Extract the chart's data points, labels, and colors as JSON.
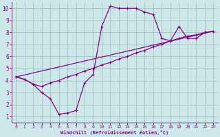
{
  "xlabel": "Windchill (Refroidissement éolien,°C)",
  "bg_color": "#cce8e8",
  "line_color": "#880088",
  "grid_color": "#99bbbb",
  "xlim": [
    -0.5,
    23.5
  ],
  "ylim": [
    0.5,
    10.5
  ],
  "xticks": [
    0,
    1,
    2,
    3,
    4,
    5,
    6,
    7,
    8,
    9,
    10,
    11,
    12,
    13,
    14,
    15,
    16,
    17,
    18,
    19,
    20,
    21,
    22,
    23
  ],
  "yticks": [
    1,
    2,
    3,
    4,
    5,
    6,
    7,
    8,
    9,
    10
  ],
  "series1_x": [
    0,
    1,
    2,
    3,
    4,
    5,
    6,
    7,
    8,
    9,
    10,
    11,
    12,
    13,
    14,
    15,
    16,
    17,
    18,
    19,
    20,
    21,
    22,
    23
  ],
  "series1_y": [
    4.3,
    4.1,
    3.7,
    3.0,
    2.5,
    1.2,
    1.3,
    1.5,
    3.8,
    4.5,
    8.5,
    10.2,
    10.0,
    10.0,
    10.0,
    9.7,
    9.5,
    7.5,
    7.3,
    8.5,
    7.5,
    7.5,
    8.0,
    8.1
  ],
  "series2_x": [
    0,
    1,
    2,
    3,
    4,
    5,
    6,
    7,
    8,
    9,
    10,
    11,
    12,
    13,
    14,
    15,
    16,
    17,
    18,
    19,
    20,
    21,
    22,
    23
  ],
  "series2_y": [
    4.3,
    4.1,
    3.7,
    3.5,
    3.8,
    4.0,
    4.3,
    4.5,
    4.8,
    5.0,
    5.3,
    5.5,
    5.8,
    6.0,
    6.3,
    6.5,
    6.8,
    7.0,
    7.3,
    7.5,
    7.7,
    7.8,
    8.0,
    8.1
  ],
  "series3_x": [
    0,
    23
  ],
  "series3_y": [
    4.3,
    8.1
  ],
  "markersize": 2.5,
  "linewidth": 0.9
}
